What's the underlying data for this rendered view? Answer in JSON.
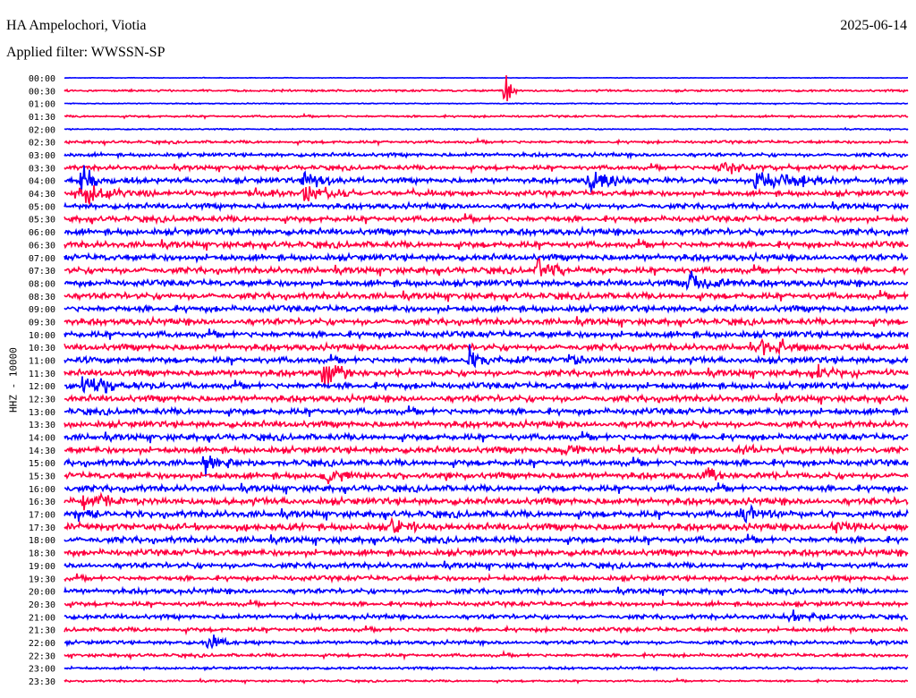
{
  "header": {
    "station": "HA Ampelochori, Viotia",
    "filter": "Applied filter: WWSSN-SP",
    "date": "2025-06-14"
  },
  "chart_data": {
    "type": "line",
    "title": "HA Ampelochori, Viotia",
    "subtitle": "Applied filter: WWSSN-SP",
    "ylabel": "HHZ - 10000",
    "xlabel": "",
    "minutes_per_line": 30,
    "colors": [
      "#0000ff",
      "#ff0040"
    ],
    "row_labels": [
      "00:00",
      "00:30",
      "01:00",
      "01:30",
      "02:00",
      "02:30",
      "03:00",
      "03:30",
      "04:00",
      "04:30",
      "05:00",
      "05:30",
      "06:00",
      "06:30",
      "07:00",
      "07:30",
      "08:00",
      "08:30",
      "09:00",
      "09:30",
      "10:00",
      "10:30",
      "11:00",
      "11:30",
      "12:00",
      "12:30",
      "13:00",
      "13:30",
      "14:00",
      "14:30",
      "15:00",
      "15:30",
      "16:00",
      "16:30",
      "17:00",
      "17:30",
      "18:00",
      "18:30",
      "19:00",
      "19:30",
      "20:00",
      "20:30",
      "21:00",
      "21:30",
      "22:00",
      "22:30",
      "23:00",
      "23:30"
    ],
    "noise_level": [
      0.3,
      1,
      0.5,
      1,
      0.6,
      1.4,
      1.8,
      2.2,
      2.6,
      2.6,
      2.6,
      2.8,
      3,
      3,
      3,
      3,
      3,
      3,
      3,
      3,
      3,
      3,
      3,
      3,
      3,
      3,
      3,
      3,
      3,
      3,
      3,
      3,
      3,
      3.2,
      3.2,
      3.2,
      3,
      3,
      2.6,
      2.4,
      2.4,
      2.2,
      2.2,
      2,
      1.8,
      1.6,
      1.2,
      1
    ],
    "events": [
      {
        "row": 1,
        "minute": 15.7,
        "amplitude": 40,
        "duration": 0.15
      },
      {
        "row": 7,
        "minute": 23.2,
        "amplitude": 10,
        "duration": 1.2
      },
      {
        "row": 8,
        "minute": 0.6,
        "amplitude": 14,
        "duration": 0.8
      },
      {
        "row": 8,
        "minute": 8.5,
        "amplitude": 12,
        "duration": 0.8
      },
      {
        "row": 8,
        "minute": 18.6,
        "amplitude": 12,
        "duration": 1.2
      },
      {
        "row": 8,
        "minute": 24.6,
        "amplitude": 14,
        "duration": 1.5
      },
      {
        "row": 9,
        "minute": 0.6,
        "amplitude": 12,
        "duration": 1.2
      },
      {
        "row": 9,
        "minute": 6.6,
        "amplitude": 8,
        "duration": 0.8
      },
      {
        "row": 9,
        "minute": 8.5,
        "amplitude": 12,
        "duration": 1
      },
      {
        "row": 9,
        "minute": 12.4,
        "amplitude": 6,
        "duration": 0.7
      },
      {
        "row": 15,
        "minute": 16.8,
        "amplitude": 12,
        "duration": 1
      },
      {
        "row": 16,
        "minute": 22.2,
        "amplitude": 20,
        "duration": 0.8
      },
      {
        "row": 21,
        "minute": 24.8,
        "amplitude": 14,
        "duration": 0.9
      },
      {
        "row": 22,
        "minute": 14.4,
        "amplitude": 12,
        "duration": 1
      },
      {
        "row": 22,
        "minute": 17.9,
        "amplitude": 8,
        "duration": 0.8
      },
      {
        "row": 23,
        "minute": 9.2,
        "amplitude": 14,
        "duration": 1
      },
      {
        "row": 23,
        "minute": 26.8,
        "amplitude": 8,
        "duration": 0.8
      },
      {
        "row": 24,
        "minute": 0.6,
        "amplitude": 16,
        "duration": 1
      },
      {
        "row": 29,
        "minute": 17.7,
        "amplitude": 8,
        "duration": 0.7
      },
      {
        "row": 29,
        "minute": 23.9,
        "amplitude": 9,
        "duration": 0.6
      },
      {
        "row": 30,
        "minute": 5,
        "amplitude": 9,
        "duration": 0.8
      },
      {
        "row": 31,
        "minute": 9.2,
        "amplitude": 10,
        "duration": 0.8
      },
      {
        "row": 31,
        "minute": 22.8,
        "amplitude": 10,
        "duration": 0.7
      },
      {
        "row": 33,
        "minute": 0.6,
        "amplitude": 8,
        "duration": 1.5
      },
      {
        "row": 34,
        "minute": 0.3,
        "amplitude": 8,
        "duration": 0.8
      },
      {
        "row": 34,
        "minute": 24,
        "amplitude": 9,
        "duration": 1.4
      },
      {
        "row": 35,
        "minute": 11.6,
        "amplitude": 12,
        "duration": 0.8
      },
      {
        "row": 35,
        "minute": 27.3,
        "amplitude": 7,
        "duration": 1
      },
      {
        "row": 42,
        "minute": 25.5,
        "amplitude": 8,
        "duration": 1
      },
      {
        "row": 44,
        "minute": 5.1,
        "amplitude": 8,
        "duration": 0.6
      }
    ]
  }
}
